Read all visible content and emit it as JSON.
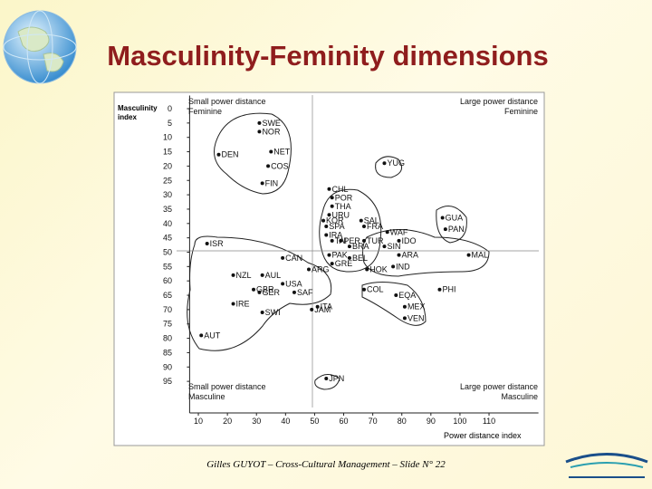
{
  "chart_data": {
    "type": "scatter",
    "title": "Masculinity-Feminity dimensions",
    "x_label": "Power distance index",
    "y_label": "Masculinity index",
    "footer": "Gilles GUYOT – Cross-Cultural Management – Slide N° 22",
    "annotations": [
      [
        "Small power distance",
        "Feminine"
      ],
      [
        "Large power distance",
        "Feminine"
      ],
      [
        "Small power distance",
        "Masculine"
      ],
      [
        "Large power distance",
        "Masculine"
      ]
    ],
    "xlim": [
      7,
      127
    ],
    "ylim": [
      -3,
      106
    ],
    "y_inverted": true,
    "xticks": [
      10,
      20,
      30,
      40,
      50,
      60,
      70,
      80,
      90,
      100,
      110
    ],
    "yticks": [
      0,
      5,
      10,
      15,
      20,
      25,
      30,
      35,
      40,
      45,
      50,
      55,
      60,
      65,
      70,
      75,
      80,
      85,
      90,
      95
    ],
    "color": "#111111",
    "labels": [
      "SWE",
      "NOR",
      "NET",
      "DEN",
      "COS",
      "FIN",
      "YUG",
      "CHL",
      "POR",
      "THA",
      "URU",
      "KOR",
      "PER",
      "TUR",
      "BRA",
      "PAK",
      "BEL",
      "GRE",
      "ARG",
      "HOK",
      "IND",
      "ARA",
      "WAF",
      "IDO",
      "SIN",
      "SAL",
      "FRA",
      "SPA",
      "IRA",
      "TAI",
      "GUA",
      "PAN",
      "MAL",
      "PHI",
      "COL",
      "EQA",
      "MEX",
      "VEN",
      "ISR",
      "CAN",
      "NZL",
      "AUL",
      "USA",
      "GBR",
      "GER",
      "SAF",
      "IRE",
      "SWI",
      "JAM",
      "ITA",
      "AUT",
      "JPN"
    ],
    "x": [
      31,
      31,
      35,
      17,
      34,
      32,
      74,
      55,
      56,
      56,
      55,
      53,
      59,
      67,
      62,
      55,
      62,
      56,
      48,
      68,
      77,
      79,
      75,
      79,
      74,
      66,
      67,
      54,
      54,
      56,
      94,
      95,
      103,
      93,
      67,
      78,
      81,
      81,
      13,
      39,
      22,
      32,
      39,
      29,
      31,
      43,
      22,
      32,
      49,
      51,
      11,
      54
    ],
    "y": [
      5,
      8,
      15,
      16,
      20,
      26,
      19,
      28,
      31,
      34,
      37,
      39,
      46,
      46,
      48,
      51,
      52,
      54,
      56,
      56,
      55,
      51,
      43,
      46,
      48,
      39,
      41,
      41,
      44,
      46,
      38,
      42,
      51,
      63,
      63,
      65,
      69,
      73,
      47,
      52,
      58,
      58,
      61,
      63,
      64,
      64,
      68,
      71,
      70,
      69,
      79,
      94
    ]
  }
}
